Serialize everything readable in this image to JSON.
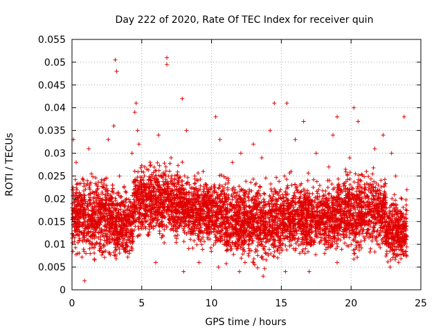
{
  "chart_data": {
    "type": "scatter",
    "title": "Day 222 of 2020, Rate Of TEC Index for receiver quin",
    "xlabel": "GPS time / hours",
    "ylabel": "ROTI / TECUs",
    "xlim": [
      0,
      25
    ],
    "ylim": [
      0,
      0.055
    ],
    "xticks": [
      0,
      5,
      10,
      15,
      20,
      25
    ],
    "xtick_labels": [
      "0",
      "5",
      "10",
      "15",
      "20",
      "25"
    ],
    "yticks": [
      0,
      0.005,
      0.01,
      0.015,
      0.02,
      0.025,
      0.03,
      0.035,
      0.04,
      0.045,
      0.05,
      0.055
    ],
    "ytick_labels": [
      "0",
      "0.005",
      "0.01",
      "0.015",
      "0.02",
      "0.025",
      "0.03",
      "0.035",
      "0.04",
      "0.045",
      "0.05",
      "0.055"
    ],
    "grid": true,
    "marker": "plus",
    "color": "#e00000",
    "series": [
      {
        "x": [
          0.1,
          0.3,
          0.5,
          0.8,
          1.0,
          1.2,
          1.5,
          1.8,
          2.0,
          2.3,
          2.6,
          2.9,
          3.0,
          3.1,
          3.2,
          3.4,
          3.6,
          3.9,
          4.1,
          4.3,
          4.5,
          4.6,
          4.8,
          5.0,
          5.3,
          5.6,
          5.9,
          6.2,
          6.5,
          6.8,
          6.8,
          7.1,
          7.4,
          7.7,
          7.9,
          8.2,
          8.5,
          8.8,
          9.1,
          9.4,
          9.7,
          10.0,
          10.3,
          10.6,
          10.9,
          11.2,
          11.5,
          11.8,
          12.1,
          12.4,
          12.7,
          13.0,
          13.3,
          13.6,
          13.9,
          14.2,
          14.5,
          14.8,
          15.1,
          15.4,
          15.7,
          16.0,
          16.3,
          16.6,
          16.9,
          17.2,
          17.5,
          17.8,
          18.1,
          18.4,
          18.7,
          19.0,
          19.3,
          19.6,
          19.9,
          20.2,
          20.5,
          20.8,
          21.1,
          21.4,
          21.7,
          22.0,
          22.3,
          22.6,
          22.9,
          23.2,
          23.5,
          23.8,
          24.0,
          0.9,
          4.7,
          12.0,
          8.0,
          15.3,
          19.0,
          22.8,
          10.5,
          6.0,
          17.0,
          13.7
        ],
        "y": [
          0.033,
          0.028,
          0.015,
          0.012,
          0.008,
          0.031,
          0.018,
          0.022,
          0.01,
          0.024,
          0.033,
          0.019,
          0.036,
          0.0505,
          0.048,
          0.025,
          0.012,
          0.02,
          0.008,
          0.03,
          0.039,
          0.041,
          0.032,
          0.022,
          0.015,
          0.028,
          0.018,
          0.034,
          0.012,
          0.051,
          0.0495,
          0.029,
          0.02,
          0.014,
          0.042,
          0.035,
          0.018,
          0.025,
          0.006,
          0.026,
          0.021,
          0.015,
          0.038,
          0.033,
          0.01,
          0.024,
          0.028,
          0.017,
          0.03,
          0.006,
          0.022,
          0.032,
          0.012,
          0.029,
          0.008,
          0.035,
          0.041,
          0.02,
          0.01,
          0.041,
          0.026,
          0.033,
          0.015,
          0.037,
          0.024,
          0.011,
          0.03,
          0.019,
          0.008,
          0.027,
          0.034,
          0.038,
          0.022,
          0.014,
          0.029,
          0.04,
          0.037,
          0.018,
          0.026,
          0.009,
          0.031,
          0.021,
          0.034,
          0.016,
          0.03,
          0.025,
          0.011,
          0.038,
          0.022,
          0.002,
          0.035,
          0.004,
          0.004,
          0.004,
          0.006,
          0.005,
          0.005,
          0.006,
          0.004,
          0.003
        ]
      }
    ],
    "dense_band": [
      {
        "x_from": 0,
        "x_to": 3,
        "y_low": 0.005,
        "y_high": 0.027
      },
      {
        "x_from": 3,
        "x_to": 4.4,
        "y_low": 0.004,
        "y_high": 0.024
      },
      {
        "x_from": 4.4,
        "x_to": 8,
        "y_low": 0.009,
        "y_high": 0.03
      },
      {
        "x_from": 8,
        "x_to": 11,
        "y_low": 0.007,
        "y_high": 0.027
      },
      {
        "x_from": 11,
        "x_to": 15,
        "y_low": 0.004,
        "y_high": 0.026
      },
      {
        "x_from": 15,
        "x_to": 19,
        "y_low": 0.006,
        "y_high": 0.026
      },
      {
        "x_from": 19,
        "x_to": 22.5,
        "y_low": 0.006,
        "y_high": 0.028
      },
      {
        "x_from": 22.5,
        "x_to": 24,
        "y_low": 0.004,
        "y_high": 0.022
      }
    ]
  }
}
